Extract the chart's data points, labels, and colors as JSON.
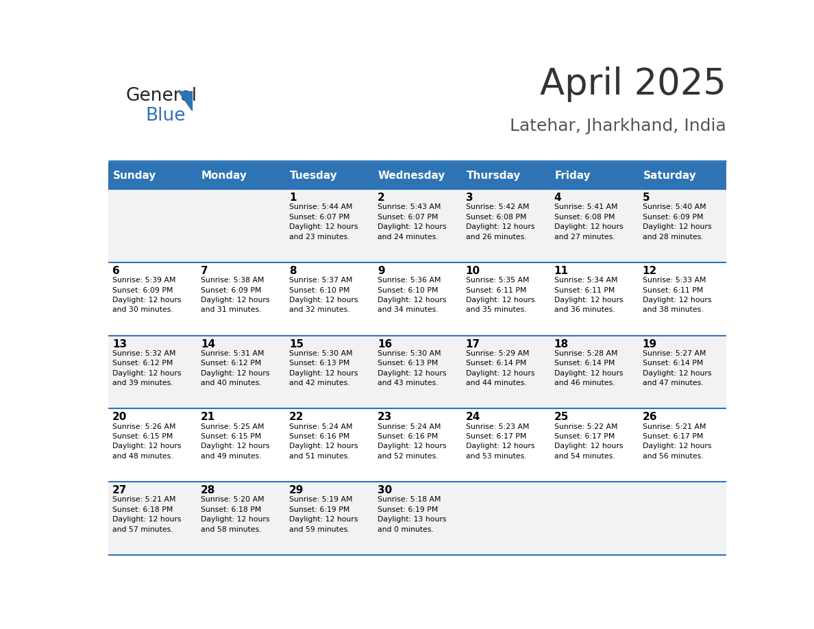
{
  "title": "April 2025",
  "subtitle": "Latehar, Jharkhand, India",
  "header_bg": "#2E74B5",
  "header_text_color": "#FFFFFF",
  "header_days": [
    "Sunday",
    "Monday",
    "Tuesday",
    "Wednesday",
    "Thursday",
    "Friday",
    "Saturday"
  ],
  "row_bg_odd": "#F2F2F2",
  "row_bg_even": "#FFFFFF",
  "cell_text_color": "#000000",
  "grid_line_color": "#2E74B5",
  "title_color": "#333333",
  "subtitle_color": "#555555",
  "logo_general_color": "#222222",
  "logo_blue_color": "#2E74B5",
  "weeks": [
    [
      {
        "day": null,
        "info": null
      },
      {
        "day": null,
        "info": null
      },
      {
        "day": 1,
        "info": "Sunrise: 5:44 AM\nSunset: 6:07 PM\nDaylight: 12 hours\nand 23 minutes."
      },
      {
        "day": 2,
        "info": "Sunrise: 5:43 AM\nSunset: 6:07 PM\nDaylight: 12 hours\nand 24 minutes."
      },
      {
        "day": 3,
        "info": "Sunrise: 5:42 AM\nSunset: 6:08 PM\nDaylight: 12 hours\nand 26 minutes."
      },
      {
        "day": 4,
        "info": "Sunrise: 5:41 AM\nSunset: 6:08 PM\nDaylight: 12 hours\nand 27 minutes."
      },
      {
        "day": 5,
        "info": "Sunrise: 5:40 AM\nSunset: 6:09 PM\nDaylight: 12 hours\nand 28 minutes."
      }
    ],
    [
      {
        "day": 6,
        "info": "Sunrise: 5:39 AM\nSunset: 6:09 PM\nDaylight: 12 hours\nand 30 minutes."
      },
      {
        "day": 7,
        "info": "Sunrise: 5:38 AM\nSunset: 6:09 PM\nDaylight: 12 hours\nand 31 minutes."
      },
      {
        "day": 8,
        "info": "Sunrise: 5:37 AM\nSunset: 6:10 PM\nDaylight: 12 hours\nand 32 minutes."
      },
      {
        "day": 9,
        "info": "Sunrise: 5:36 AM\nSunset: 6:10 PM\nDaylight: 12 hours\nand 34 minutes."
      },
      {
        "day": 10,
        "info": "Sunrise: 5:35 AM\nSunset: 6:11 PM\nDaylight: 12 hours\nand 35 minutes."
      },
      {
        "day": 11,
        "info": "Sunrise: 5:34 AM\nSunset: 6:11 PM\nDaylight: 12 hours\nand 36 minutes."
      },
      {
        "day": 12,
        "info": "Sunrise: 5:33 AM\nSunset: 6:11 PM\nDaylight: 12 hours\nand 38 minutes."
      }
    ],
    [
      {
        "day": 13,
        "info": "Sunrise: 5:32 AM\nSunset: 6:12 PM\nDaylight: 12 hours\nand 39 minutes."
      },
      {
        "day": 14,
        "info": "Sunrise: 5:31 AM\nSunset: 6:12 PM\nDaylight: 12 hours\nand 40 minutes."
      },
      {
        "day": 15,
        "info": "Sunrise: 5:30 AM\nSunset: 6:13 PM\nDaylight: 12 hours\nand 42 minutes."
      },
      {
        "day": 16,
        "info": "Sunrise: 5:30 AM\nSunset: 6:13 PM\nDaylight: 12 hours\nand 43 minutes."
      },
      {
        "day": 17,
        "info": "Sunrise: 5:29 AM\nSunset: 6:14 PM\nDaylight: 12 hours\nand 44 minutes."
      },
      {
        "day": 18,
        "info": "Sunrise: 5:28 AM\nSunset: 6:14 PM\nDaylight: 12 hours\nand 46 minutes."
      },
      {
        "day": 19,
        "info": "Sunrise: 5:27 AM\nSunset: 6:14 PM\nDaylight: 12 hours\nand 47 minutes."
      }
    ],
    [
      {
        "day": 20,
        "info": "Sunrise: 5:26 AM\nSunset: 6:15 PM\nDaylight: 12 hours\nand 48 minutes."
      },
      {
        "day": 21,
        "info": "Sunrise: 5:25 AM\nSunset: 6:15 PM\nDaylight: 12 hours\nand 49 minutes."
      },
      {
        "day": 22,
        "info": "Sunrise: 5:24 AM\nSunset: 6:16 PM\nDaylight: 12 hours\nand 51 minutes."
      },
      {
        "day": 23,
        "info": "Sunrise: 5:24 AM\nSunset: 6:16 PM\nDaylight: 12 hours\nand 52 minutes."
      },
      {
        "day": 24,
        "info": "Sunrise: 5:23 AM\nSunset: 6:17 PM\nDaylight: 12 hours\nand 53 minutes."
      },
      {
        "day": 25,
        "info": "Sunrise: 5:22 AM\nSunset: 6:17 PM\nDaylight: 12 hours\nand 54 minutes."
      },
      {
        "day": 26,
        "info": "Sunrise: 5:21 AM\nSunset: 6:17 PM\nDaylight: 12 hours\nand 56 minutes."
      }
    ],
    [
      {
        "day": 27,
        "info": "Sunrise: 5:21 AM\nSunset: 6:18 PM\nDaylight: 12 hours\nand 57 minutes."
      },
      {
        "day": 28,
        "info": "Sunrise: 5:20 AM\nSunset: 6:18 PM\nDaylight: 12 hours\nand 58 minutes."
      },
      {
        "day": 29,
        "info": "Sunrise: 5:19 AM\nSunset: 6:19 PM\nDaylight: 12 hours\nand 59 minutes."
      },
      {
        "day": 30,
        "info": "Sunrise: 5:18 AM\nSunset: 6:19 PM\nDaylight: 13 hours\nand 0 minutes."
      },
      {
        "day": null,
        "info": null
      },
      {
        "day": null,
        "info": null
      },
      {
        "day": null,
        "info": null
      }
    ]
  ]
}
